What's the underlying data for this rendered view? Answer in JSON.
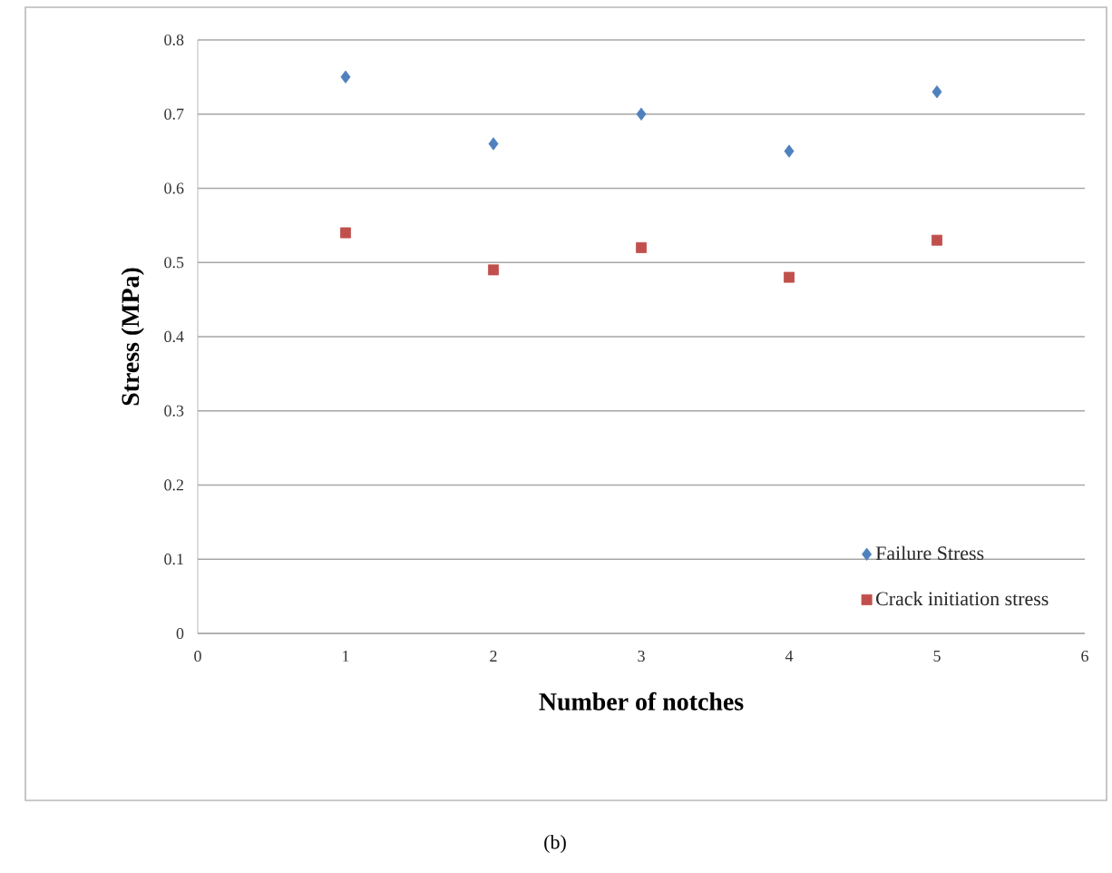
{
  "chart_data": {
    "type": "scatter",
    "xlabel": "Number of notches",
    "ylabel": "Stress (MPa)",
    "x": [
      1,
      2,
      3,
      4,
      5
    ],
    "series": [
      {
        "name": "Failure Stress",
        "color": "#4f81bd",
        "marker": "diamond",
        "values": [
          0.75,
          0.66,
          0.7,
          0.65,
          0.73
        ]
      },
      {
        "name": "Crack initiation stress",
        "color": "#c0504d",
        "marker": "square",
        "values": [
          0.54,
          0.49,
          0.52,
          0.48,
          0.53
        ]
      }
    ],
    "xlim": [
      0,
      6
    ],
    "xticks": [
      0,
      1,
      2,
      3,
      4,
      5,
      6
    ],
    "ylim": [
      0,
      0.8
    ],
    "yticks": [
      {
        "value": 0,
        "label": "0"
      },
      0.1,
      0.2,
      0.3,
      0.4,
      0.5,
      0.6,
      0.7,
      0.8
    ],
    "grid": "y",
    "legend": "bottom right",
    "annotations": [
      "(b)"
    ]
  }
}
